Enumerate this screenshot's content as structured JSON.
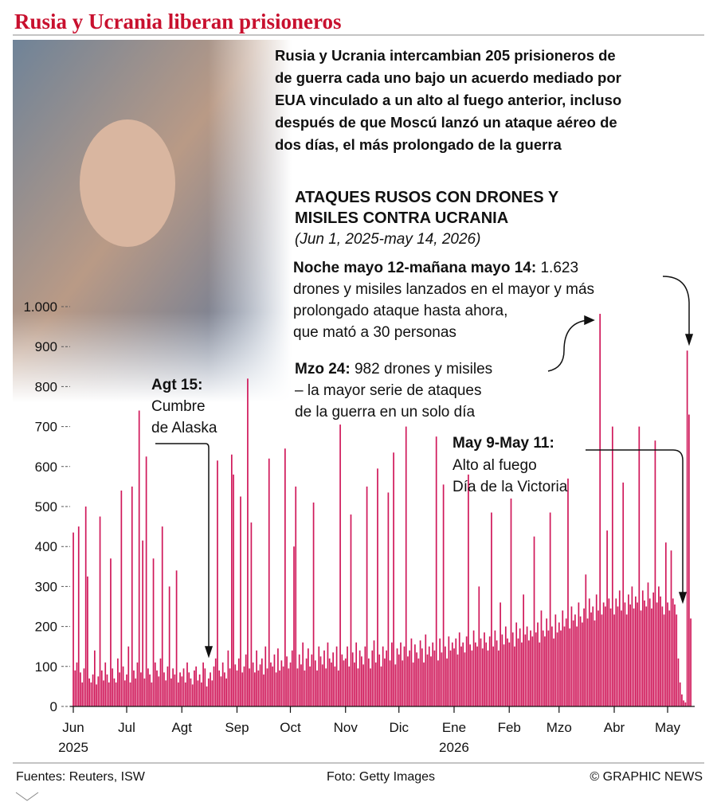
{
  "chart_data": {
    "type": "bar",
    "title": "Rusia y Ucrania liberan prisioneros",
    "subtitle": [
      "Rusia y Ucrania intercambian 205 prisioneros de",
      "de guerra cada uno bajo un acuerdo mediado por",
      "EUA vinculado a un alto al fuego anterior, incluso",
      "después de que Moscú lanzó un ataque aéreo de",
      "dos días, el más prolongado de la guerra"
    ],
    "chart_title": [
      "ATAQUES RUSOS CON DRONES Y",
      "MISILES CONTRA UCRANIA"
    ],
    "chart_subtitle": "(Jun 1, 2025-may 14, 2026)",
    "annotations": [
      {
        "label": "Noche mayo 12-mañana mayo 14:",
        "lines": [
          "1.623",
          "drones y misiles lanzados en el mayor y más",
          "prolongado ataque hasta ahora,",
          "que mató a 30 personas"
        ]
      },
      {
        "label": "Mzo 24:",
        "lines": [
          "982 drones y misiles",
          "– la mayor serie de ataques",
          "de la guerra en un solo día"
        ]
      },
      {
        "label": "Agt 15:",
        "lines": [
          "Cumbre",
          "de Alaska"
        ]
      },
      {
        "label": "May 9-May 11:",
        "lines": [
          "Alto al fuego",
          "Día de la Victoria"
        ]
      }
    ],
    "color": "#d0185a",
    "values": [
      435,
      90,
      110,
      450,
      85,
      60,
      95,
      500,
      325,
      70,
      60,
      80,
      140,
      55,
      75,
      475,
      90,
      65,
      110,
      80,
      60,
      370,
      95,
      70,
      60,
      120,
      85,
      540,
      100,
      65,
      80,
      150,
      60,
      550,
      90,
      70,
      110,
      740,
      85,
      415,
      70,
      625,
      95,
      80,
      60,
      370,
      110,
      90,
      75,
      120,
      450,
      85,
      65,
      100,
      300,
      70,
      95,
      80,
      340,
      60,
      85,
      75,
      95,
      60,
      110,
      85,
      70,
      55,
      90,
      100,
      65,
      80,
      60,
      110,
      95,
      50,
      70,
      85,
      65,
      100,
      120,
      615,
      90,
      75,
      110,
      85,
      70,
      140,
      95,
      630,
      580,
      105,
      90,
      120,
      525,
      85,
      100,
      130,
      820,
      95,
      460,
      110,
      85,
      140,
      90,
      105,
      120,
      80,
      150,
      95,
      620,
      110,
      100,
      130,
      85,
      145,
      90,
      115,
      100,
      645,
      125,
      95,
      110,
      140,
      400,
      550,
      95,
      130,
      105,
      160,
      90,
      120,
      145,
      100,
      130,
      510,
      115,
      90,
      150,
      125,
      105,
      140,
      95,
      160,
      120,
      110,
      135,
      100,
      150,
      90,
      705,
      130,
      115,
      120,
      150,
      100,
      480,
      135,
      110,
      160,
      95,
      140,
      125,
      105,
      150,
      550,
      120,
      95,
      140,
      165,
      110,
      595,
      130,
      100,
      150,
      120,
      140,
      535,
      115,
      160,
      635,
      105,
      145,
      130,
      160,
      115,
      150,
      700,
      125,
      140,
      170,
      110,
      155,
      135,
      120,
      165,
      145,
      110,
      180,
      130,
      150,
      125,
      160,
      140,
      675,
      115,
      170,
      135,
      555,
      150,
      120,
      175,
      140,
      160,
      145,
      170,
      130,
      185,
      150,
      160,
      135,
      175,
      580,
      155,
      140,
      190,
      160,
      150,
      300,
      170,
      145,
      185,
      160,
      140,
      175,
      485,
      150,
      190,
      165,
      140,
      260,
      180,
      155,
      200,
      170,
      160,
      520,
      185,
      150,
      210,
      170,
      195,
      160,
      280,
      180,
      200,
      165,
      190,
      175,
      425,
      185,
      210,
      160,
      240,
      190,
      175,
      220,
      190,
      485,
      200,
      170,
      230,
      185,
      210,
      190,
      240,
      200,
      220,
      570,
      195,
      250,
      215,
      230,
      200,
      260,
      225,
      210,
      245,
      330,
      220,
      270,
      235,
      250,
      215,
      280,
      240,
      982,
      230,
      260,
      250,
      440,
      270,
      245,
      700,
      230,
      270,
      250,
      290,
      240,
      560,
      260,
      230,
      280,
      255,
      300,
      245,
      275,
      260,
      700,
      240,
      290,
      265,
      250,
      310,
      270,
      245,
      285,
      665,
      260,
      300,
      275,
      250,
      230,
      410,
      260,
      240,
      390,
      270,
      255,
      230,
      120,
      60,
      30,
      15,
      10,
      890,
      730,
      220
    ],
    "xlim": [
      0,
      348
    ],
    "xticks": [
      {
        "value": 0,
        "label": "Jun"
      },
      {
        "value": 30,
        "label": "Jul"
      },
      {
        "value": 61,
        "label": "Agt"
      },
      {
        "value": 92,
        "label": "Sep"
      },
      {
        "value": 122,
        "label": "Oct"
      },
      {
        "value": 153,
        "label": "Nov"
      },
      {
        "value": 183,
        "label": "Dic"
      },
      {
        "value": 214,
        "label": "Ene"
      },
      {
        "value": 245,
        "label": "Feb"
      },
      {
        "value": 273,
        "label": "Mzo"
      },
      {
        "value": 304,
        "label": "Abr"
      },
      {
        "value": 334,
        "label": "May"
      }
    ],
    "year_labels": [
      {
        "value": 0,
        "label": "2025"
      },
      {
        "value": 214,
        "label": "2026"
      }
    ],
    "ylim": [
      0,
      1000
    ],
    "yticks": [
      0,
      100,
      200,
      300,
      400,
      500,
      600,
      700,
      800,
      900,
      {
        "value": 1000,
        "label": "1.000"
      }
    ],
    "sources": "Fuentes: Reuters, ISW",
    "photo_credit": "Foto: Getty Images",
    "credit": "© GRAPHIC NEWS"
  }
}
